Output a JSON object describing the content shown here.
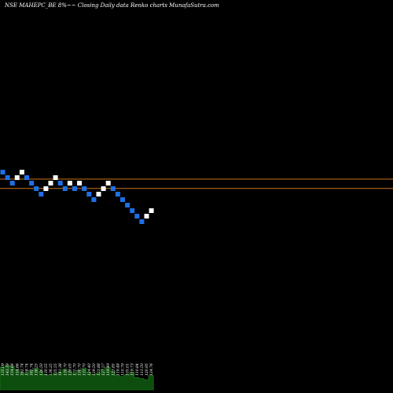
{
  "header": {
    "title": "NSE MAHEPC_BE 8%~~ Closing Daily data Renko charts MunafaSutra.com"
  },
  "colors": {
    "background": "#000000",
    "text": "#ffffff",
    "up_brick": "#ffffff",
    "down_brick": "#1f6fe5",
    "reference_line": "#c8731e",
    "volume_fill": "#0d4d0d",
    "volume_stroke": "#1f8a1f"
  },
  "chart_data": {
    "type": "renko",
    "title": "NSE MAHEPC_BE 8%~~ Closing Daily data Renko charts MunafaSutra.com",
    "box_size_note": "8%",
    "bricks": [
      {
        "dir": "down",
        "level": 0
      },
      {
        "dir": "down",
        "level": 1
      },
      {
        "dir": "down",
        "level": 2
      },
      {
        "dir": "up",
        "level": 1
      },
      {
        "dir": "up",
        "level": 0
      },
      {
        "dir": "down",
        "level": 1
      },
      {
        "dir": "down",
        "level": 2
      },
      {
        "dir": "down",
        "level": 3
      },
      {
        "dir": "down",
        "level": 4
      },
      {
        "dir": "up",
        "level": 3
      },
      {
        "dir": "up",
        "level": 2
      },
      {
        "dir": "up",
        "level": 1
      },
      {
        "dir": "down",
        "level": 2
      },
      {
        "dir": "down",
        "level": 3
      },
      {
        "dir": "up",
        "level": 2
      },
      {
        "dir": "down",
        "level": 3
      },
      {
        "dir": "up",
        "level": 2
      },
      {
        "dir": "down",
        "level": 3
      },
      {
        "dir": "down",
        "level": 4
      },
      {
        "dir": "down",
        "level": 5
      },
      {
        "dir": "up",
        "level": 4
      },
      {
        "dir": "up",
        "level": 3
      },
      {
        "dir": "up",
        "level": 2
      },
      {
        "dir": "down",
        "level": 3
      },
      {
        "dir": "down",
        "level": 4
      },
      {
        "dir": "down",
        "level": 5
      },
      {
        "dir": "down",
        "level": 6
      },
      {
        "dir": "down",
        "level": 7
      },
      {
        "dir": "down",
        "level": 8
      },
      {
        "dir": "down",
        "level": 9
      },
      {
        "dir": "up",
        "level": 8
      },
      {
        "dir": "up",
        "level": 7
      }
    ],
    "reference_lines": [
      {
        "name": "upper",
        "value_level": 1.7
      },
      {
        "name": "lower",
        "value_level": 3.4
      }
    ],
    "price_labels": [
      "135.09",
      "143.19",
      "154.66",
      "154.66",
      "162.74",
      "158.74",
      "162.74",
      "136.25",
      "136.50",
      "130.55",
      "136.25",
      "135.55",
      "141.38",
      "130.70",
      "139.05",
      "131.70",
      "130.70",
      "131.70",
      "124.40",
      "129.50",
      "123.88",
      "127.57",
      "119.49",
      "123.85",
      "119.48",
      "110.79",
      "105.01",
      "119.73",
      "110.84",
      "111.50",
      "120.95",
      "124.76"
    ],
    "volume": [
      22,
      24,
      23,
      20,
      17,
      16,
      19,
      21,
      18,
      15,
      14,
      16,
      17,
      20,
      18,
      16,
      19,
      21,
      17,
      15,
      16,
      20,
      22,
      18,
      14,
      13,
      15,
      17,
      12,
      11,
      10,
      14
    ]
  }
}
